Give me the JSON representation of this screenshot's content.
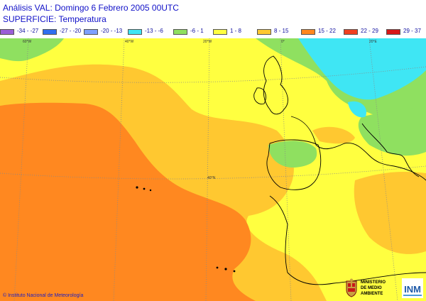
{
  "header": {
    "title": "Análisis VAL: Domingo 6 Febrero 2005 00UTC",
    "subtitle": "SUPERFICIE: Temperatura"
  },
  "legend": [
    {
      "label": "-34 - -27",
      "color": "#9b5fd8"
    },
    {
      "label": "-27 - -20",
      "color": "#2f6ff0"
    },
    {
      "label": "-20 - -13",
      "color": "#7ea0ff"
    },
    {
      "label": "-13 - -6",
      "color": "#3fe6f4"
    },
    {
      "label": "-6 - 1",
      "color": "#8fe060"
    },
    {
      "label": "1 - 8",
      "color": "#ffff40"
    },
    {
      "label": "8 - 15",
      "color": "#ffc830"
    },
    {
      "label": "15 - 22",
      "color": "#ff8820"
    },
    {
      "label": "22 - 29",
      "color": "#f04020"
    },
    {
      "label": "29 - 37",
      "color": "#d81818"
    }
  ],
  "map": {
    "grid_labels": {
      "lon_60w": "60°W",
      "lon_40w": "40°W",
      "lon_20w": "20°W",
      "lon_0": "0°",
      "lon_20e": "20°E",
      "lat_40n": "40°N"
    }
  },
  "footer": {
    "credit": "© Instituto Nacional de Meteorología",
    "ministry_lines": [
      "MINISTERIO",
      "DE MEDIO",
      "AMBIENTE"
    ],
    "agency_logo": "INM"
  }
}
